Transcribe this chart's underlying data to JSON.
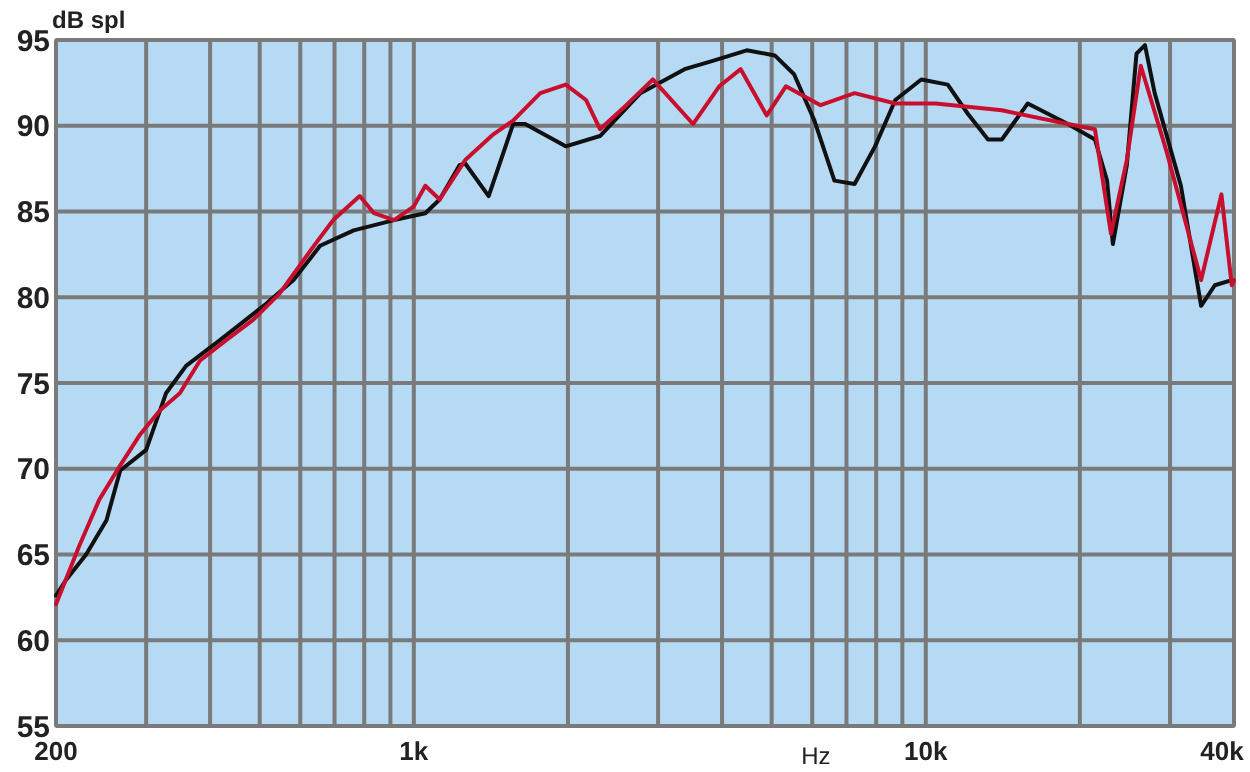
{
  "chart_data": {
    "type": "line",
    "xlabel": "Hz",
    "ylabel": "dB spl",
    "log": "x",
    "grid": true,
    "line_style": "solid",
    "xlim": [
      200,
      40000
    ],
    "ylim": [
      55,
      95
    ],
    "xticks": [
      200,
      {
        "value": 300,
        "label": null
      },
      {
        "value": 400,
        "label": null
      },
      {
        "value": 500,
        "label": null
      },
      {
        "value": 600,
        "label": null
      },
      {
        "value": 700,
        "label": null
      },
      {
        "value": 800,
        "label": null
      },
      {
        "value": 900,
        "label": null
      },
      {
        "value": 1000,
        "label": "1k"
      },
      {
        "value": 2000,
        "label": null
      },
      {
        "value": 3000,
        "label": null
      },
      {
        "value": 4000,
        "label": null
      },
      {
        "value": 5000,
        "label": null
      },
      {
        "value": 6000,
        "label": null
      },
      {
        "value": 7000,
        "label": null
      },
      {
        "value": 8000,
        "label": null
      },
      {
        "value": 9000,
        "label": null
      },
      {
        "value": 10000,
        "label": "10k"
      },
      {
        "value": 20000,
        "label": null
      },
      {
        "value": 30000,
        "label": null
      },
      {
        "value": 40000,
        "label": "40k"
      }
    ],
    "yticks": [
      55,
      60,
      65,
      70,
      75,
      80,
      85,
      90,
      95
    ],
    "series": [
      {
        "color": "#111111",
        "x": [
          200,
          209,
          229,
          251,
          267,
          300,
          328,
          359,
          418,
          514,
          582,
          656,
          763,
          915,
          1053,
          1123,
          1228,
          1260,
          1400,
          1563,
          1650,
          1980,
          2310,
          2770,
          3380,
          3850,
          4470,
          5070,
          5530,
          6060,
          6630,
          7260,
          7960,
          8720,
          9800,
          11040,
          12080,
          13230,
          14080,
          15820,
          18950,
          21400,
          22600,
          23200,
          24700,
          25800,
          26800,
          28000,
          31500,
          34500,
          36700,
          39600
        ],
        "values": [
          62.6,
          63.5,
          65.0,
          67.0,
          69.9,
          71.1,
          74.4,
          76.0,
          77.5,
          79.6,
          81.0,
          83.0,
          83.9,
          84.5,
          84.9,
          85.7,
          87.7,
          87.8,
          85.9,
          90.1,
          90.1,
          88.8,
          89.4,
          91.9,
          93.3,
          93.8,
          94.4,
          94.1,
          93.0,
          90.3,
          86.8,
          86.6,
          88.8,
          91.5,
          92.7,
          92.4,
          90.7,
          89.2,
          89.2,
          91.3,
          90.1,
          89.2,
          86.8,
          83.1,
          87.7,
          94.2,
          94.7,
          91.9,
          86.5,
          79.5,
          80.7,
          81.0
        ]
      },
      {
        "color": "#c8102e",
        "x": [
          200,
          222,
          243,
          267,
          292,
          319,
          349,
          382,
          430,
          486,
          546,
          638,
          696,
          784,
          836,
          915,
          1000,
          1053,
          1123,
          1260,
          1430,
          1563,
          1766,
          1980,
          2170,
          2310,
          2600,
          2930,
          3510,
          3950,
          4350,
          4890,
          5330,
          6230,
          7260,
          8720,
          10450,
          14080,
          18950,
          21400,
          23000,
          24700,
          26300,
          29600,
          34500,
          37800,
          39600,
          40000
        ],
        "values": [
          62.1,
          65.5,
          68.2,
          70.2,
          72.0,
          73.4,
          74.4,
          76.3,
          77.5,
          78.7,
          80.2,
          83.0,
          84.5,
          85.9,
          84.9,
          84.5,
          85.3,
          86.5,
          85.7,
          88.0,
          89.5,
          90.3,
          91.9,
          92.4,
          91.5,
          89.8,
          91.2,
          92.7,
          90.1,
          92.3,
          93.3,
          90.6,
          92.3,
          91.2,
          91.9,
          91.3,
          91.3,
          90.9,
          90.1,
          89.8,
          83.7,
          88.0,
          93.5,
          88.4,
          81.0,
          86.0,
          80.7,
          81.0
        ]
      }
    ]
  }
}
